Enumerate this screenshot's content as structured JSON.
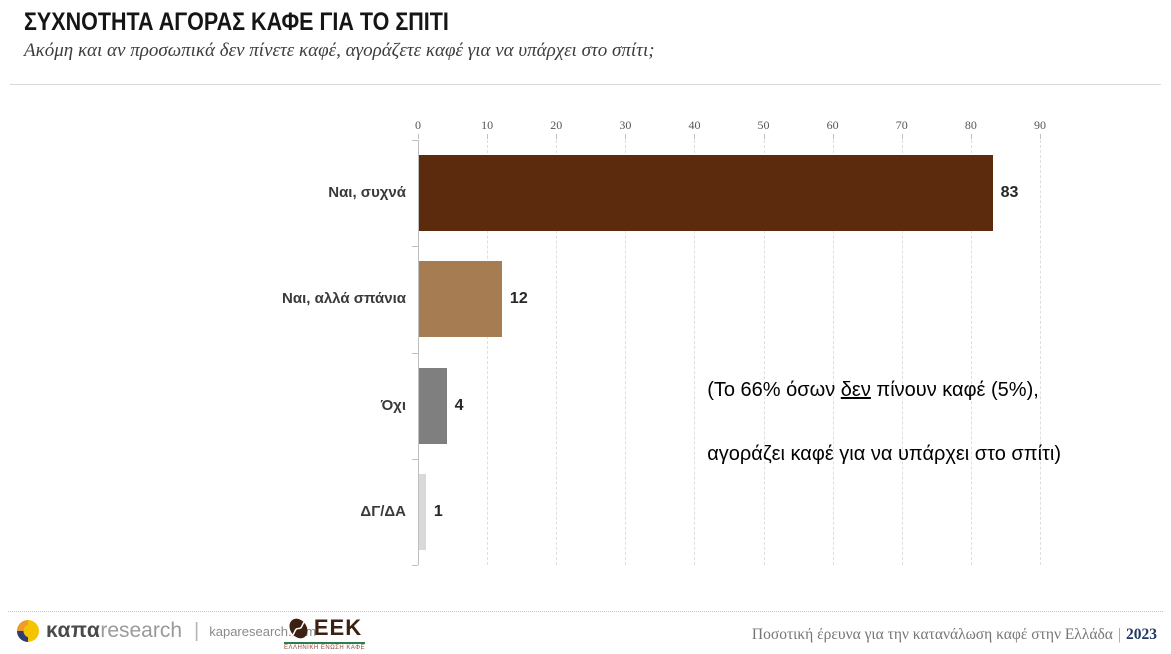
{
  "header": {
    "title": "ΣΥΧΝΟΤΗΤΑ ΑΓΟΡΑΣ ΚΑΦΕ ΓΙΑ ΤΟ ΣΠΙΤΙ",
    "subtitle": "Ακόμη και αν προσωπικά δεν πίνετε καφέ, αγοράζετε καφέ για να υπάρχει στο σπίτι;"
  },
  "chart_data": {
    "type": "bar",
    "orientation": "horizontal",
    "categories": [
      "Ναι, συχνά",
      "Ναι, αλλά σπάνια",
      "Όχι",
      "ΔΓ/ΔΑ"
    ],
    "values": [
      83,
      12,
      4,
      1
    ],
    "bar_colors": [
      "#5c2b0d",
      "#a67c52",
      "#7f7f7f",
      "#d9d9d9"
    ],
    "value_labels": [
      "83",
      "12",
      "4",
      "1"
    ],
    "xlim": [
      0,
      90
    ],
    "x_ticks": [
      0,
      10,
      20,
      30,
      40,
      50,
      60,
      70,
      80,
      90
    ],
    "grid": true,
    "legend": false,
    "title": "",
    "xlabel": "",
    "ylabel": ""
  },
  "annotation": {
    "line1_pre": "(Το 66% όσων ",
    "line1_underlined": "δεν",
    "line1_post": " πίνουν καφέ (5%),",
    "line2": "αγοράζει καφέ για να υπάρχει στο σπίτι)"
  },
  "footer": {
    "kapa_logo_bold": "καπα",
    "kapa_logo_light": "research",
    "divider": "|",
    "site": "kaparesearch.com",
    "eek_acronym": "ΕΕΚ",
    "eek_subtext": "ΕΛΛΗΝΙΚΗ ΕΝΩΣΗ ΚΑΦΕ",
    "right_text": "Ποσοτική έρευνα για την κατανάλωση καφέ στην Ελλάδα",
    "right_divider": "|",
    "year": "2023"
  },
  "colors": {
    "bar_dark_brown": "#5c2b0d",
    "bar_light_brown": "#a67c52",
    "bar_gray": "#7f7f7f",
    "bar_light_gray": "#d9d9d9",
    "year_navy": "#203864",
    "eek_green": "#2e7d4f",
    "kapa_orange": "#ef9a2c",
    "kapa_blue": "#2c3e78",
    "kapa_yellow": "#f5c400"
  }
}
